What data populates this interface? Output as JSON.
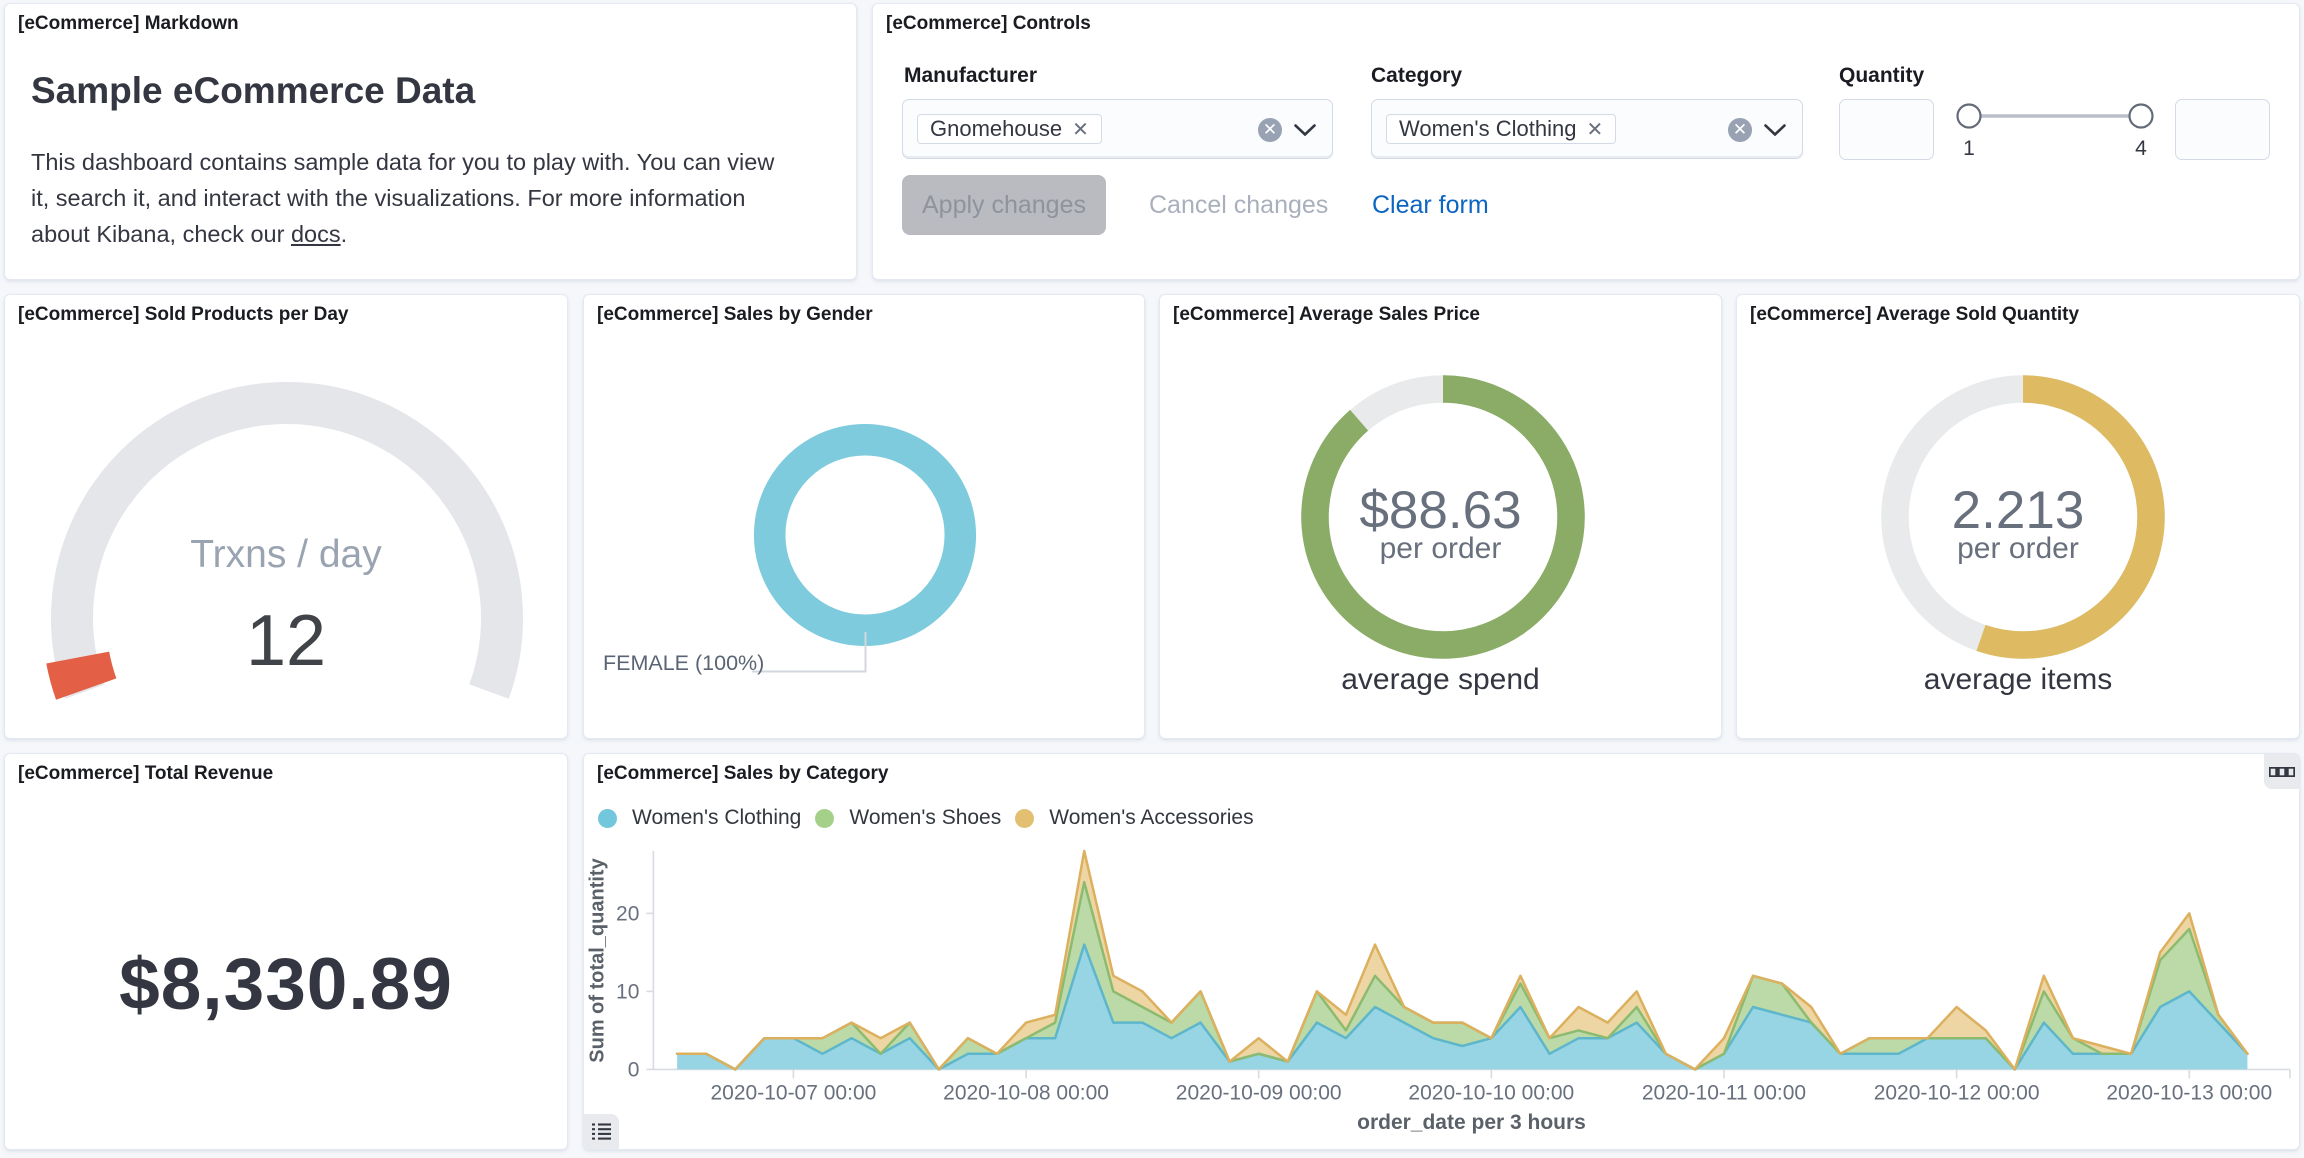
{
  "panels": {
    "markdown": {
      "title": "[eCommerce] Markdown",
      "heading": "Sample eCommerce Data",
      "body_line1": "This dashboard contains sample data for you to play with. You can view",
      "body_line2": "it, search it, and interact with the visualizations. For more information",
      "body_line3_prefix": "about Kibana, check our ",
      "body_link": "docs",
      "body_line3_suffix": "."
    },
    "controls": {
      "title": "[eCommerce] Controls",
      "manufacturer": {
        "label": "Manufacturer",
        "selected_pill": "Gnomehouse"
      },
      "category": {
        "label": "Category",
        "selected_pill": "Women's Clothing"
      },
      "quantity": {
        "label": "Quantity",
        "range_min": "1",
        "range_max": "4"
      },
      "apply_label": "Apply changes",
      "cancel_label": "Cancel changes",
      "clear_label": "Clear form"
    },
    "sold_products": {
      "title": "[eCommerce] Sold Products per Day"
    },
    "sales_by_gender": {
      "title": "[eCommerce] Sales by Gender"
    },
    "avg_sales_price": {
      "title": "[eCommerce] Average Sales Price"
    },
    "avg_sold_quantity": {
      "title": "[eCommerce] Average Sold Quantity"
    },
    "total_revenue": {
      "title": "[eCommerce] Total Revenue",
      "value": "$8,330.89"
    },
    "sales_by_category": {
      "title": "[eCommerce] Sales by Category"
    }
  },
  "chart_data": [
    {
      "id": "sold_products_gauge",
      "type": "gauge",
      "label": "Trxns / day",
      "value": 12,
      "value_display": "12",
      "range": [
        0,
        300
      ],
      "arc_start_deg": 200,
      "arc_end_deg": -20,
      "track_color": "#e5e6ea",
      "value_color": "#e35f45"
    },
    {
      "id": "sales_by_gender_pie",
      "type": "pie",
      "slices": [
        {
          "label": "FEMALE (100%)",
          "value": 100
        }
      ],
      "slice_color": "#7ecbdd",
      "label_color": "#5a6474",
      "connector_color": "#d3d7de"
    },
    {
      "id": "average_sales_price_goal",
      "type": "goal",
      "value_label": "$88.63",
      "sublabel": "per order",
      "caption": "average spend",
      "value": 88.63,
      "max": 100,
      "ring_color": "#8bac66",
      "track_color": "#e9eaec"
    },
    {
      "id": "average_sold_quantity_goal",
      "type": "goal",
      "value_label": "2.213",
      "sublabel": "per order",
      "caption": "average items",
      "value": 2.213,
      "max": 4,
      "ring_color": "#debb62",
      "track_color": "#e9eaec"
    },
    {
      "id": "sales_by_category_area",
      "type": "area",
      "title": "[eCommerce] Sales by Category",
      "xlabel": "order_date per 3 hours",
      "ylabel": "Sum of total_quantity",
      "x_start": "2020-10-06 12:00",
      "x_interval_hours": 3,
      "x_tick_labels": [
        "2020-10-07 00:00",
        "2020-10-08 00:00",
        "2020-10-09 00:00",
        "2020-10-10 00:00",
        "2020-10-11 00:00",
        "2020-10-12 00:00",
        "2020-10-13 00:00"
      ],
      "y_ticks": [
        0,
        10,
        20
      ],
      "ylim": [
        0,
        28
      ],
      "series": [
        {
          "name": "Women's Clothing",
          "fill": "#97d5e4",
          "stroke": "#5eb6cb",
          "dot": "#72c7dc",
          "values": [
            2,
            2,
            0,
            4,
            4,
            2,
            4,
            2,
            4,
            0,
            2,
            2,
            4,
            4,
            16,
            6,
            6,
            4,
            6,
            1,
            2,
            1,
            6,
            4,
            8,
            6,
            4,
            3,
            4,
            8,
            2,
            4,
            4,
            6,
            2,
            0,
            2,
            8,
            7,
            6,
            2,
            2,
            2,
            4,
            4,
            4,
            0,
            6,
            2,
            2,
            2,
            8,
            10,
            6,
            2
          ]
        },
        {
          "name": "Women's Shoes",
          "fill": "#bcdaa7",
          "stroke": "#8cbb70",
          "dot": "#a5d08a",
          "values": [
            0,
            0,
            0,
            0,
            0,
            2,
            2,
            0,
            2,
            0,
            2,
            0,
            0,
            2,
            8,
            4,
            2,
            2,
            4,
            0,
            0,
            0,
            4,
            1,
            4,
            2,
            2,
            3,
            0,
            3,
            2,
            1,
            0,
            2,
            0,
            0,
            0,
            4,
            4,
            0,
            0,
            2,
            2,
            0,
            0,
            0,
            0,
            4,
            2,
            0,
            0,
            6,
            8,
            1,
            0
          ]
        },
        {
          "name": "Women's Accessories",
          "fill": "#edd6a3",
          "stroke": "#dcb05e",
          "dot": "#e3bf72",
          "values": [
            0,
            0,
            0,
            0,
            0,
            0,
            0,
            2,
            0,
            0,
            0,
            0,
            2,
            1,
            4,
            2,
            2,
            0,
            0,
            0,
            2,
            0,
            0,
            2,
            4,
            0,
            0,
            0,
            0,
            1,
            0,
            3,
            2,
            2,
            0,
            0,
            2,
            0,
            0,
            2,
            0,
            0,
            0,
            0,
            4,
            1,
            0,
            2,
            0,
            1,
            0,
            1,
            2,
            0,
            0
          ]
        }
      ]
    }
  ]
}
